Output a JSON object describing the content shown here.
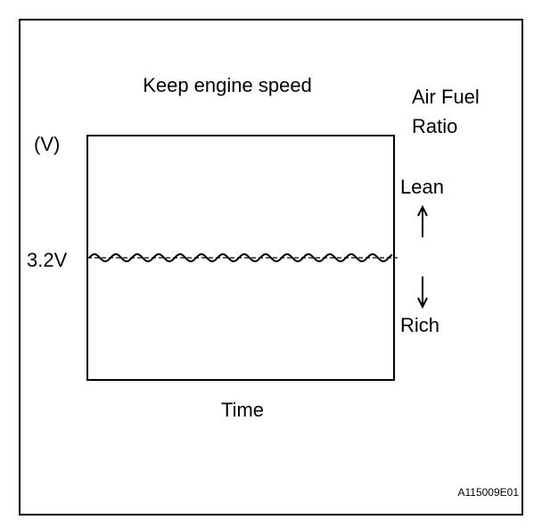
{
  "title": "Keep engine speed",
  "y_axis": {
    "unit": "(V)",
    "level_label": "3.2V"
  },
  "x_axis": {
    "label": "Time"
  },
  "right_axis": {
    "title_lines": [
      "Air Fuel",
      "Ratio"
    ],
    "upper": "Lean",
    "lower": "Rich"
  },
  "figure_id": "A115009E01"
}
